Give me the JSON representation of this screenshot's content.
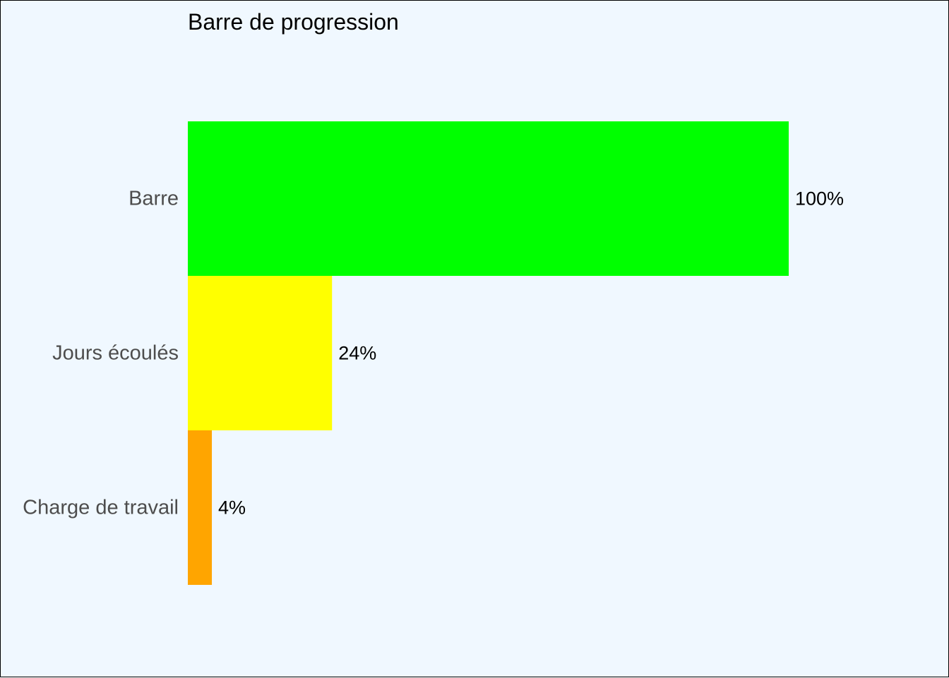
{
  "chart_data": {
    "type": "bar",
    "orientation": "horizontal",
    "title": "Barre de progression",
    "xlabel": "",
    "ylabel": "",
    "xlim": [
      0,
      100
    ],
    "grid": false,
    "legend": "none",
    "background_color": "#f0f8ff",
    "categories": [
      "Barre",
      "Jours écoulés",
      "Charge de travail"
    ],
    "values": [
      100,
      24,
      4
    ],
    "value_labels": [
      "100%",
      "24%",
      "4%"
    ],
    "colors": [
      "#00ff00",
      "#ffff00",
      "#ffa500"
    ]
  }
}
